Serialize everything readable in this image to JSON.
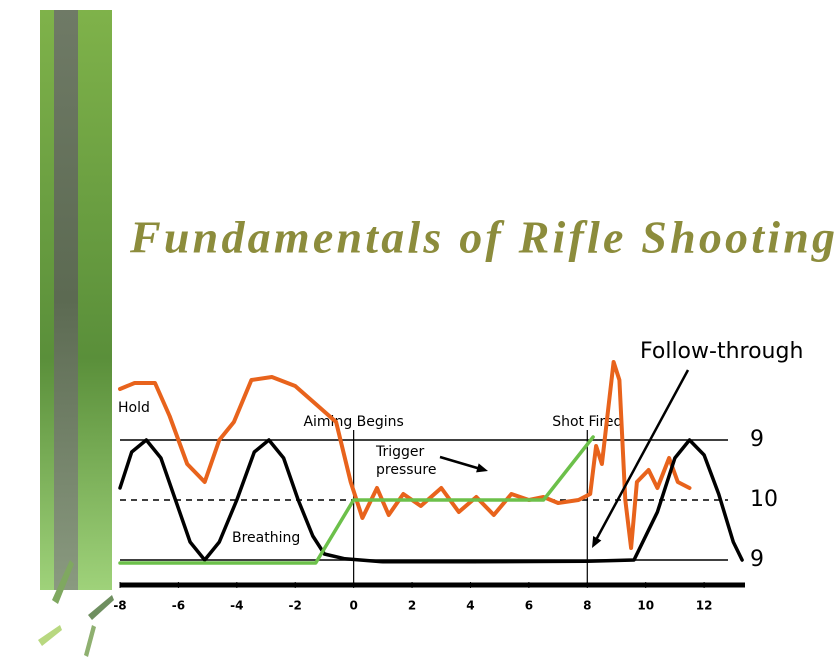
{
  "chart_data": {
    "type": "line",
    "title": "Fundamentals of Rifle Shooting",
    "xlim": [
      -8,
      13.4
    ],
    "xticks": [
      -8,
      -6,
      -4,
      -2,
      0,
      2,
      4,
      6,
      8,
      10,
      12
    ],
    "ylim": [
      -1.4,
      2.5
    ],
    "yticks": [
      {
        "value": 1,
        "label": "9"
      },
      {
        "value": 0,
        "label": "10"
      },
      {
        "value": -1,
        "label": "9"
      }
    ],
    "markers": [
      {
        "x": 0,
        "label": "Aiming Begins"
      },
      {
        "x": 8,
        "label": "Shot Fired"
      }
    ],
    "annotation": "Follow-through",
    "series": [
      {
        "name": "Hold",
        "color": "#e8631c",
        "x": [
          -8,
          -7.5,
          -6.8,
          -6.3,
          -5.7,
          -5.1,
          -4.6,
          -4.1,
          -3.5,
          -2.8,
          -2,
          -1.3,
          -0.6,
          -0.1,
          0.3,
          0.8,
          1.2,
          1.7,
          2.3,
          3,
          3.6,
          4.2,
          4.8,
          5.4,
          6,
          6.5,
          7,
          7.7,
          8.1,
          8.3,
          8.5,
          8.9,
          9.1,
          9.3,
          9.5,
          9.7,
          10.1,
          10.4,
          10.8,
          11.1,
          11.5
        ],
        "values": [
          1.85,
          1.95,
          1.95,
          1.4,
          0.6,
          0.3,
          1.0,
          1.3,
          2.0,
          2.05,
          1.9,
          1.6,
          1.3,
          0.3,
          -0.3,
          0.2,
          -0.25,
          0.1,
          -0.1,
          0.2,
          -0.2,
          0.05,
          -0.25,
          0.1,
          0,
          0.05,
          -0.05,
          0,
          0.1,
          0.9,
          0.6,
          2.3,
          2.0,
          0,
          -0.8,
          0.3,
          0.5,
          0.2,
          0.7,
          0.3,
          0.2
        ]
      },
      {
        "name": "Breathing",
        "color": "#000000",
        "x": [
          -8,
          -7.6,
          -7.1,
          -6.6,
          -6.1,
          -5.6,
          -5.1,
          -4.6,
          -4.0,
          -3.4,
          -2.9,
          -2.4,
          -1.9,
          -1.4,
          -1,
          -0.3,
          1,
          4,
          8,
          9.6,
          10.4,
          11,
          11.5,
          12,
          12.5,
          13,
          13.3
        ],
        "values": [
          0.2,
          0.8,
          1,
          0.7,
          0,
          -0.7,
          -1,
          -0.7,
          0,
          0.8,
          1,
          0.7,
          0,
          -0.6,
          -0.9,
          -0.98,
          -1.03,
          -1.03,
          -1.02,
          -1,
          -0.2,
          0.7,
          1,
          0.75,
          0.1,
          -0.7,
          -1
        ]
      },
      {
        "name": "Trigger pressure",
        "color": "#6cc04a",
        "x": [
          -8,
          -1.3,
          0,
          6.5,
          8.2
        ],
        "values": [
          -1.05,
          -1.05,
          0,
          0,
          1.05
        ]
      }
    ]
  }
}
